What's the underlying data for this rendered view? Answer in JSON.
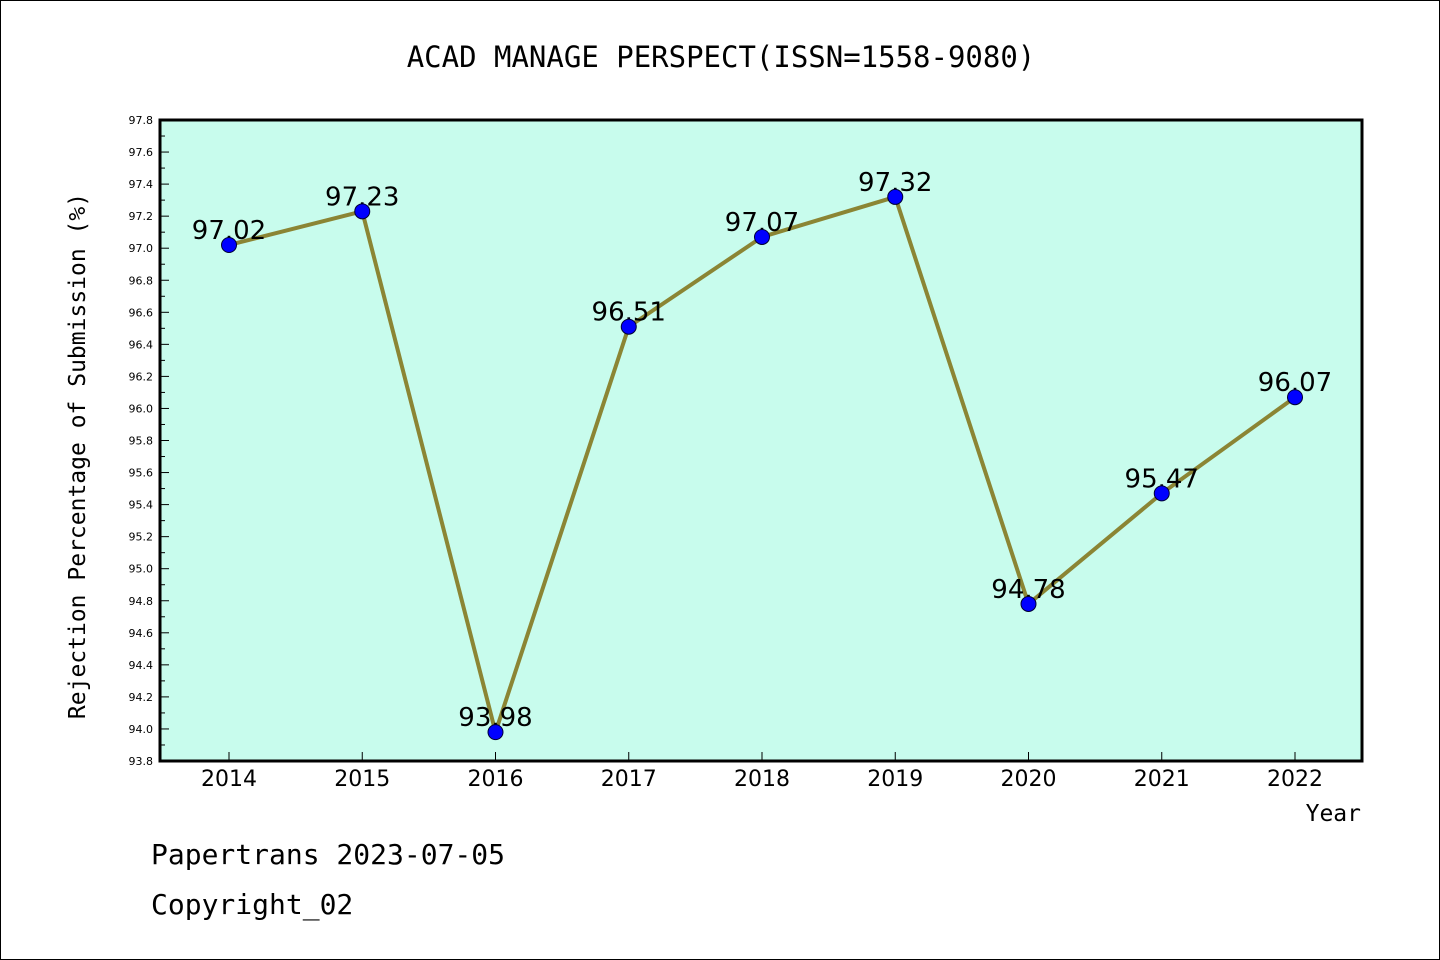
{
  "chart_data": {
    "type": "line",
    "title": "ACAD MANAGE PERSPECT(ISSN=1558-9080)",
    "xlabel": "Year",
    "ylabel": "Rejection Percentage of Submission (%)",
    "categories": [
      "2014",
      "2015",
      "2016",
      "2017",
      "2018",
      "2019",
      "2020",
      "2021",
      "2022"
    ],
    "series": [
      {
        "values": [
          97.02,
          97.23,
          93.98,
          96.51,
          97.07,
          97.32,
          94.78,
          95.47,
          96.07
        ]
      }
    ],
    "data_labels": [
      "97.02",
      "97.23",
      "93.98",
      "96.51",
      "97.07",
      "97.32",
      "94.78",
      "95.47",
      "96.07"
    ],
    "ylim": [
      93.8,
      97.8
    ],
    "yticks": [
      "93.8",
      "94.0",
      "94.2",
      "94.4",
      "94.6",
      "94.8",
      "95.0",
      "95.2",
      "95.4",
      "95.6",
      "95.8",
      "96.0",
      "96.2",
      "96.4",
      "96.6",
      "96.8",
      "97.0",
      "97.2",
      "97.4",
      "97.6",
      "97.8"
    ],
    "grid": false,
    "colors": {
      "plot_background": "#c8fced",
      "line": "#8b8534",
      "marker": "#0000ff"
    }
  },
  "footer": {
    "line1": "Papertrans 2023-07-05",
    "line2": "Copyright_02"
  }
}
